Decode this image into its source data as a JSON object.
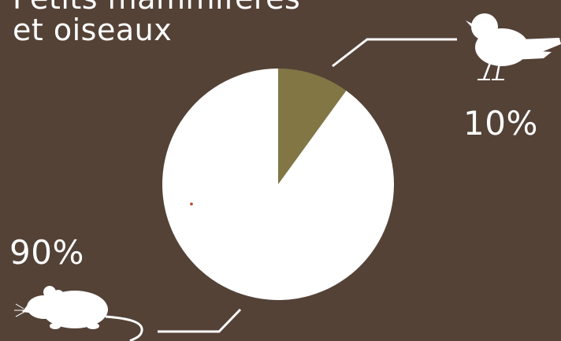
{
  "title_lines": [
    "Petits mammifères",
    "et oiseaux"
  ],
  "colors": {
    "background": "#544237",
    "mammals": "#ffffff",
    "birds": "#827645",
    "text": "#ffffff"
  },
  "icons": {
    "birds": "bird-icon",
    "mammals": "mouse-icon"
  },
  "chart_data": {
    "type": "pie",
    "title": "Petits mammifères et oiseaux",
    "start_angle_deg": 0,
    "direction": "clockwise",
    "slices": [
      {
        "label": "10%",
        "value": 10,
        "color": "#827645",
        "icon": "bird-icon"
      },
      {
        "label": "90%",
        "value": 90,
        "color": "#ffffff",
        "icon": "mouse-icon"
      }
    ]
  }
}
